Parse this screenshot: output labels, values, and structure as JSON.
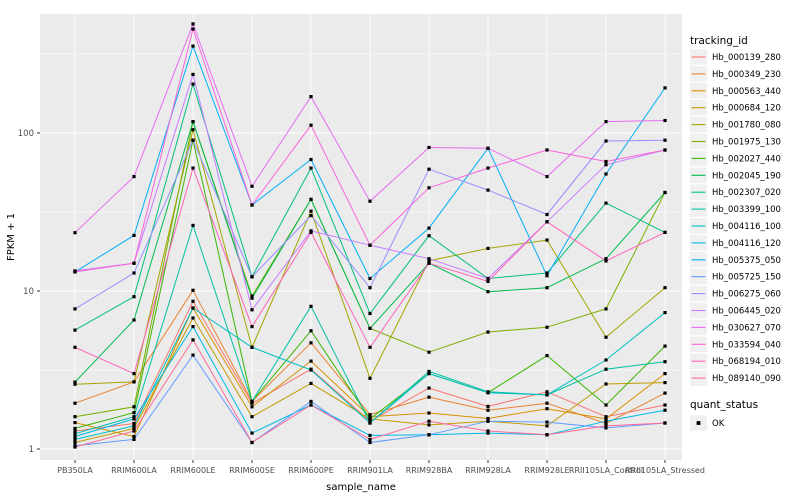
{
  "chart_data": {
    "type": "line",
    "title": "",
    "xlabel": "sample_name",
    "ylabel": "FPKM + 1",
    "yscale": "log10",
    "yticks": [
      1,
      10,
      100
    ],
    "ylim": [
      0.85,
      565
    ],
    "grid": true,
    "legend_position": "right",
    "panel_bg": "#EBEBEB",
    "grid_color": "#FFFFFF",
    "point_color": "#000000",
    "axis_text_color": "#4D4D4D",
    "legend_key_bg": "#F0F0F0",
    "categories": [
      "PB350LA",
      "RRIM600LA",
      "RRIM600LE",
      "RRIM600SE",
      "RRIM600PE",
      "RRIM901LA",
      "RRIM928BA",
      "RRIM928LA",
      "RRIM928LE",
      "RRII105LA_Control",
      "RRII105LA_Stressed"
    ],
    "color_legend_title": "tracking_id",
    "shape_legend_title": "quant_status",
    "shape_legend_label": "OK",
    "series": [
      {
        "name": "Hb_000139_280",
        "color": "#F8766D",
        "values": [
          1.3,
          1.45,
          8.6,
          1.95,
          3.2,
          1.5,
          2.43,
          1.86,
          2.3,
          1.6,
          1.9
        ]
      },
      {
        "name": "Hb_000349_230",
        "color": "#EA8331",
        "values": [
          1.95,
          2.66,
          10.1,
          2.0,
          4.7,
          1.65,
          2.13,
          1.76,
          1.95,
          1.45,
          2.26
        ]
      },
      {
        "name": "Hb_000563_440",
        "color": "#D89000",
        "values": [
          1.47,
          1.2,
          7.8,
          1.85,
          3.6,
          1.6,
          1.69,
          1.56,
          1.8,
          1.55,
          3.0
        ]
      },
      {
        "name": "Hb_000684_120",
        "color": "#C09B00",
        "values": [
          1.1,
          1.35,
          6.75,
          1.6,
          2.6,
          1.55,
          1.42,
          1.5,
          1.4,
          2.58,
          2.63
        ]
      },
      {
        "name": "Hb_001780_080",
        "color": "#A3A500",
        "values": [
          2.57,
          2.66,
          105,
          4.4,
          32,
          2.8,
          15.5,
          18.6,
          21,
          5.1,
          10.5
        ]
      },
      {
        "name": "Hb_001975_130",
        "color": "#7CAE00",
        "values": [
          1.6,
          1.85,
          118,
          9.3,
          38,
          5.8,
          4.1,
          5.5,
          5.9,
          7.7,
          42
        ]
      },
      {
        "name": "Hb_002027_440",
        "color": "#39B600",
        "values": [
          1.35,
          1.7,
          90,
          2.0,
          5.6,
          1.55,
          3.0,
          2.27,
          3.9,
          1.9,
          4.48
        ]
      },
      {
        "name": "Hb_002045_190",
        "color": "#00BB4E",
        "values": [
          2.65,
          6.55,
          118,
          9.0,
          38,
          5.8,
          15.0,
          9.9,
          10.5,
          16.0,
          42
        ]
      },
      {
        "name": "Hb_002307_020",
        "color": "#00BF7D",
        "values": [
          5.66,
          9.2,
          204,
          12.3,
          60,
          7.2,
          22.4,
          12.0,
          13.0,
          36.0,
          23.5
        ]
      },
      {
        "name": "Hb_003399_100",
        "color": "#00C1A3",
        "values": [
          1.25,
          1.6,
          26,
          2.0,
          8.0,
          1.46,
          3.1,
          2.3,
          2.2,
          3.2,
          3.57
        ]
      },
      {
        "name": "Hb_004116_100",
        "color": "#00BFC4",
        "values": [
          1.15,
          1.4,
          7.8,
          4.4,
          3.16,
          1.46,
          3.0,
          2.27,
          2.2,
          3.66,
          7.3
        ]
      },
      {
        "name": "Hb_004116_120",
        "color": "#00B8E7",
        "values": [
          1.2,
          1.55,
          5.95,
          1.26,
          1.9,
          1.22,
          1.23,
          1.26,
          1.23,
          1.5,
          1.76
        ]
      },
      {
        "name": "Hb_005375_050",
        "color": "#00B0F6",
        "values": [
          13.2,
          22.5,
          355,
          35,
          68,
          12.0,
          25.0,
          80,
          12.5,
          55,
          193
        ]
      },
      {
        "name": "Hb_005725_150",
        "color": "#619CFF",
        "values": [
          1.05,
          1.15,
          3.93,
          1.1,
          2.0,
          1.1,
          1.23,
          1.5,
          1.48,
          1.36,
          1.46
        ]
      },
      {
        "name": "Hb_006275_060",
        "color": "#9590FF",
        "values": [
          7.7,
          13.0,
          90,
          12.3,
          30,
          10.5,
          59,
          43.5,
          30.5,
          89,
          90
        ]
      },
      {
        "name": "Hb_006445_020",
        "color": "#C77CFF",
        "values": [
          13.4,
          15.0,
          235,
          7.6,
          24,
          19.5,
          16.0,
          12.0,
          27.4,
          63,
          78
        ]
      },
      {
        "name": "Hb_030627_070",
        "color": "#E76BF3",
        "values": [
          23.4,
          53,
          490,
          46,
          170,
          37,
          81,
          80,
          53,
          118,
          120
        ]
      },
      {
        "name": "Hb_033594_040",
        "color": "#FA62DB",
        "values": [
          13.2,
          15.0,
          455,
          35,
          112,
          19.5,
          45,
          60,
          78,
          66,
          78
        ]
      },
      {
        "name": "Hb_068194_010",
        "color": "#FF62BC",
        "values": [
          4.4,
          3.0,
          60,
          5.95,
          23.5,
          4.4,
          15.0,
          11.5,
          27.4,
          15.5,
          23.5
        ]
      },
      {
        "name": "Hb_089140_090",
        "color": "#FF6A98",
        "values": [
          1.03,
          1.3,
          4.9,
          1.1,
          1.9,
          1.15,
          1.5,
          1.3,
          1.23,
          1.4,
          1.46
        ]
      }
    ]
  }
}
